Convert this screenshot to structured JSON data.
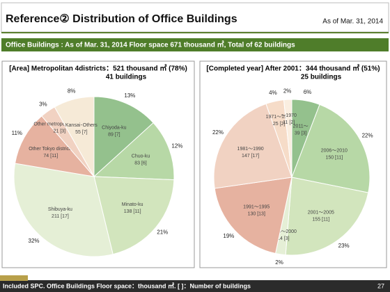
{
  "header": {
    "title": "Reference② Distribution of Office Buildings",
    "date": "As of Mar. 31, 2014"
  },
  "banner": "Office Buildings : As of Mar. 31, 2014  Floor space 671 thousand ㎡, Total of 62 buildings",
  "chart_data": [
    {
      "type": "pie",
      "title": "[Area] Metropolitan 4districts：521 thousand ㎡ (78%)",
      "subtitle": "41 buildings",
      "categories": [
        "Chiyoda-ku",
        "Chuo-ku",
        "Minato-ku",
        "Shibuya-ku",
        "Other Tokyo districts",
        "Other metropolitan area",
        "Kansai･Others"
      ],
      "values": [
        89,
        83,
        138,
        211,
        74,
        21,
        55
      ],
      "value_labels": [
        "89 [7]",
        "83 [6]",
        "138 [11]",
        "211 [17]",
        "74 [11]",
        "21 [3]",
        "55 [7]"
      ],
      "percent_labels": [
        "13%",
        "12%",
        "21%",
        "32%",
        "11%",
        "3%",
        "8%"
      ],
      "colors": [
        "#94c18d",
        "#b7d8a6",
        "#d2e5bd",
        "#e5efd6",
        "#e6b2a0",
        "#f1d2c2",
        "#f6ead7"
      ]
    },
    {
      "type": "pie",
      "title": "[Completed year] After 2001：344 thousand ㎡ (51%)",
      "subtitle": "25 buildings",
      "categories": [
        "2011～",
        "2006～2010",
        "2001～2005",
        "1996～2000",
        "1991～1995",
        "1981～1990",
        "1971～1980",
        "～1970"
      ],
      "values": [
        39,
        150,
        155,
        14,
        130,
        147,
        25,
        11
      ],
      "value_labels": [
        "39 [3]",
        "150 [11]",
        "155 [11]",
        "14 [3]",
        "130 [13]",
        "147 [17]",
        "25 [2]",
        "11 [2]"
      ],
      "percent_labels": [
        "6%",
        "22%",
        "23%",
        "2%",
        "19%",
        "22%",
        "4%",
        "2%"
      ],
      "colors": [
        "#94c18d",
        "#b7d8a6",
        "#d2e5bd",
        "#e5efd6",
        "#e6b2a0",
        "#f1d2c2",
        "#f6dcc8",
        "#faeee0"
      ]
    }
  ],
  "footnote": "Included SPC.   Office Buildings Floor space：thousand ㎡.   [ ]：Number of buildings",
  "page_number": 27
}
